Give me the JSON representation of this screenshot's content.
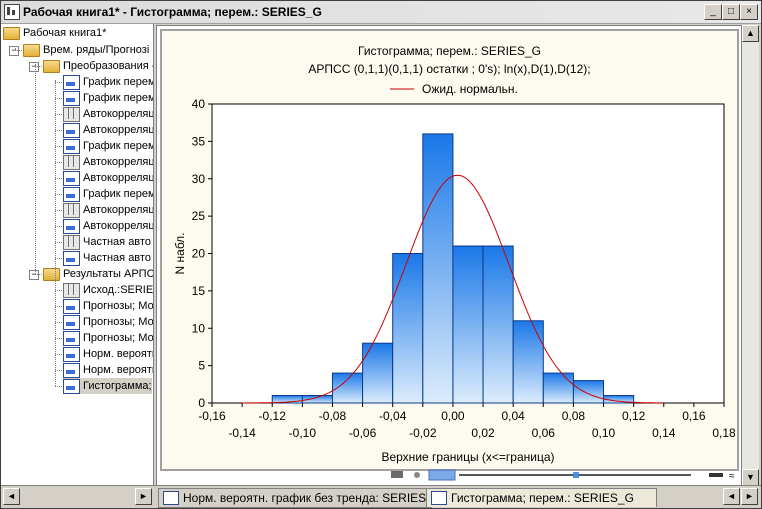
{
  "window": {
    "title": "Рабочая книга1* - Гистограмма; перем.: SERIES_G",
    "minimize": "_",
    "maximize": "□",
    "close": "×"
  },
  "tree": {
    "root": "Рабочая книга1*",
    "items": [
      {
        "label": "Врем. ряды/Прогнозі",
        "icon": "folder-icon",
        "level": 1
      },
      {
        "label": "Преобразования -",
        "icon": "folder-icon",
        "level": 2
      },
      {
        "label": "График перем",
        "icon": "graph-icon",
        "level": 3
      },
      {
        "label": "График перем",
        "icon": "graph-icon",
        "level": 3
      },
      {
        "label": "Автокорреляц",
        "icon": "table-icon",
        "level": 3
      },
      {
        "label": "Автокорреляц",
        "icon": "graph-icon",
        "level": 3
      },
      {
        "label": "График перем",
        "icon": "graph-icon",
        "level": 3
      },
      {
        "label": "Автокорреляц",
        "icon": "table-icon",
        "level": 3
      },
      {
        "label": "Автокорреляц",
        "icon": "graph-icon",
        "level": 3
      },
      {
        "label": "График перем",
        "icon": "graph-icon",
        "level": 3
      },
      {
        "label": "Автокорреляц",
        "icon": "table-icon",
        "level": 3
      },
      {
        "label": "Автокорреляц",
        "icon": "graph-icon",
        "level": 3
      },
      {
        "label": "Частная авто",
        "icon": "table-icon",
        "level": 3
      },
      {
        "label": "Частная авто",
        "icon": "graph-icon",
        "level": 3
      },
      {
        "label": "Результаты АРПС",
        "icon": "folder-icon",
        "level": 2
      },
      {
        "label": "Исход.:SERIES",
        "icon": "table-icon",
        "level": 3
      },
      {
        "label": "Прогнозы; Мо",
        "icon": "graph-icon",
        "level": 3
      },
      {
        "label": "Прогнозы; Мо",
        "icon": "graph-icon",
        "level": 3
      },
      {
        "label": "Прогнозы; Мо",
        "icon": "graph-icon",
        "level": 3
      },
      {
        "label": "Норм. вероятн",
        "icon": "graph-icon",
        "level": 3
      },
      {
        "label": "Норм. вероятн",
        "icon": "graph-icon",
        "level": 3
      },
      {
        "label": "Гистограмма;",
        "icon": "graph-icon",
        "level": 3,
        "selected": true
      }
    ]
  },
  "chart_data": {
    "type": "bar",
    "title": "Гистограмма; перем.: SERIES_G",
    "subtitle": "АРПСС (0,1,1)(0,1,1) остатки  ; 0's); ln(x),D(1),D(12);",
    "legend": [
      "Ожид. нормальн."
    ],
    "legend_placement": "top-center",
    "xlabel": "Верхние границы (x<=граница)",
    "ylabel": "N набл.",
    "xlim": [
      -0.16,
      0.18
    ],
    "ylim": [
      0,
      40
    ],
    "yticks": [
      "0",
      "5",
      "10",
      "15",
      "20",
      "25",
      "30",
      "35",
      "40"
    ],
    "xticks_upper": [
      "-0,16",
      "-0,12",
      "-0,08",
      "-0,04",
      "0,00",
      "0,04",
      "0,08",
      "0,12",
      "0,16"
    ],
    "xticks_lower": [
      "-0,14",
      "-0,10",
      "-0,06",
      "-0,02",
      "0,02",
      "0,06",
      "0,10",
      "0,14",
      "0,18"
    ],
    "bin_upper_bounds": [
      -0.12,
      -0.1,
      -0.08,
      -0.06,
      -0.04,
      -0.02,
      0.0,
      0.02,
      0.04,
      0.06,
      0.08,
      0.1,
      0.12,
      0.14
    ],
    "bin_width": 0.02,
    "values": [
      0,
      1,
      1,
      4,
      8,
      20,
      36,
      21,
      21,
      11,
      4,
      3,
      1,
      0
    ],
    "normal_curve": {
      "name": "Ожид. нормальн.",
      "mean": 0.003,
      "sd": 0.0343,
      "n": 131,
      "color": "#cc0000"
    },
    "bar_color_top": "#1a78e8",
    "bar_color_bottom": "#dcecfc",
    "grid": false
  },
  "tabs": [
    {
      "label": "Норм. вероятн. график без тренда: SERIES_G",
      "active": false
    },
    {
      "label": "Гистограмма; перем.: SERIES_G",
      "active": true
    }
  ],
  "scroll": {
    "up": "▲",
    "down": "▼",
    "left": "◄",
    "right": "►"
  }
}
